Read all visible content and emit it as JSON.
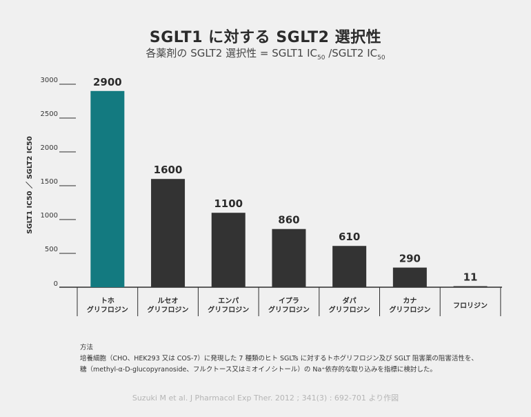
{
  "title": "SGLT1 に対する SGLT2 選択性",
  "subtitle_prefix": "各薬剤の SGLT2 選択性 = SGLT1 IC",
  "subtitle_sub1": "50",
  "subtitle_mid": " /SGLT2 IC",
  "subtitle_sub2": "50",
  "method": {
    "heading": "方法",
    "line1": "培養細胞（CHO、HEK293 又は COS-7）に発現した 7 種類のヒト SGLTs に対するトホグリフロジン及び SGLT 阻害薬の阻害活性を、",
    "line2": "糖（methyl-α-D-glucopyranoside、フルクトース又はミオイノシトール）の Na⁺依存的な取り込みを指標に検討した。"
  },
  "source": "Suzuki M et al. J Pharmacol Exp Ther. 2012 ; 341(3) : 692-701 より作図",
  "colors": {
    "highlight": "#137a80",
    "bar": "#333333",
    "axis": "#2b2b2b"
  },
  "chart_data": {
    "type": "bar",
    "ylabel": "SGLT1 IC50 ／ SGLT2 IC50",
    "ylim": [
      0,
      3000
    ],
    "yticks": [
      0,
      500,
      1000,
      1500,
      2000,
      2500,
      3000
    ],
    "categories": [
      [
        "トホ",
        "グリフロジン"
      ],
      [
        "ルセオ",
        "グリフロジン"
      ],
      [
        "エンパ",
        "グリフロジン"
      ],
      [
        "イプラ",
        "グリフロジン"
      ],
      [
        "ダパ",
        "グリフロジン"
      ],
      [
        "カナ",
        "グリフロジン"
      ],
      [
        "フロリジン"
      ]
    ],
    "values": [
      2900,
      1600,
      1100,
      860,
      610,
      290,
      11
    ],
    "highlight_index": 0,
    "grid": false
  }
}
